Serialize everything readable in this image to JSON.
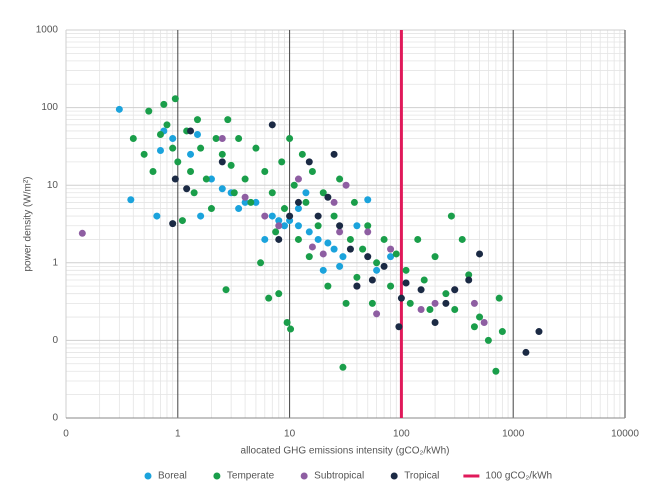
{
  "chart_data": {
    "type": "scatter",
    "x_label": "allocated GHG emissions intensity (gCO₂/kWh)",
    "y_label": "power density (W/m²)",
    "xscale": "log",
    "yscale": "log",
    "grid": true,
    "legend": "bottom",
    "xlim": [
      0.1,
      10000
    ],
    "xticks": [
      {
        "value": 0.1,
        "label": "0"
      },
      1,
      10,
      100,
      1000,
      10000
    ],
    "ylim": [
      0.01,
      1000
    ],
    "yticks": [
      {
        "value": 0.01,
        "label": "0"
      },
      {
        "value": 0.1,
        "label": "0"
      },
      1,
      10,
      100,
      1000
    ],
    "series": [
      {
        "name": "Boreal",
        "color": "#1ba3dc",
        "x": [
          0.3,
          0.38,
          0.65,
          0.7,
          0.75,
          0.9,
          1.3,
          1.5,
          1.6,
          2,
          2.5,
          3,
          3.5,
          4,
          5,
          6,
          7,
          8,
          9,
          10,
          12,
          15,
          18,
          22,
          25,
          30,
          40,
          50,
          60,
          80,
          28,
          20,
          12,
          14
        ],
        "values": [
          95,
          6.5,
          4,
          28,
          50,
          40,
          25,
          45,
          4,
          12,
          9,
          8,
          5,
          6,
          6,
          2,
          4,
          3.5,
          3,
          3.5,
          3,
          2.5,
          2,
          1.8,
          1.5,
          1.2,
          3,
          6.5,
          0.8,
          1.2,
          0.9,
          0.8,
          5,
          8
        ]
      },
      {
        "name": "Temperate",
        "color": "#1a9e4a",
        "x": [
          0.4,
          0.5,
          0.55,
          0.6,
          0.7,
          0.75,
          0.8,
          0.9,
          0.95,
          1.0,
          1.1,
          1.2,
          1.3,
          1.4,
          1.5,
          1.6,
          1.8,
          2,
          2.2,
          2.5,
          2.7,
          2.8,
          3,
          3.2,
          3.5,
          4,
          4.5,
          5,
          5.5,
          6,
          6.5,
          7,
          7.5,
          8,
          8.5,
          9,
          9.5,
          10,
          10.2,
          11,
          12,
          13,
          14,
          15,
          16,
          18,
          20,
          22,
          25,
          28,
          30,
          32,
          35,
          38,
          40,
          45,
          50,
          55,
          60,
          70,
          80,
          90,
          110,
          120,
          140,
          160,
          180,
          200,
          250,
          280,
          300,
          350,
          400,
          450,
          500,
          600,
          700,
          750,
          800
        ],
        "values": [
          40,
          25,
          90,
          15,
          45,
          110,
          60,
          30,
          130,
          20,
          3.5,
          50,
          15,
          8,
          70,
          30,
          12,
          5,
          40,
          25,
          0.45,
          70,
          18,
          8,
          40,
          12,
          6,
          30,
          1,
          15,
          0.35,
          8,
          2.5,
          0.4,
          20,
          5,
          0.17,
          40,
          0.14,
          10,
          2,
          25,
          6,
          1.2,
          15,
          3,
          8,
          0.5,
          4,
          12,
          0.045,
          0.3,
          2,
          6,
          0.65,
          1.5,
          3,
          0.3,
          1,
          2,
          0.5,
          1.3,
          0.8,
          0.3,
          2,
          0.6,
          0.25,
          1.2,
          0.4,
          4,
          0.25,
          2,
          0.7,
          0.15,
          0.2,
          0.1,
          0.04,
          0.35,
          0.13
        ]
      },
      {
        "name": "Subtropical",
        "color": "#8e5ea2",
        "x": [
          0.14,
          2.5,
          4,
          6,
          8,
          12,
          16,
          20,
          25,
          28,
          32,
          40,
          50,
          60,
          80,
          110,
          150,
          200,
          300,
          450,
          550
        ],
        "values": [
          2.4,
          40,
          7,
          4,
          3,
          12,
          1.6,
          1.3,
          6,
          2.5,
          10,
          0.5,
          2.5,
          0.22,
          1.5,
          0.55,
          0.25,
          0.3,
          0.45,
          0.3,
          0.17
        ]
      },
      {
        "name": "Tropical",
        "color": "#1b2a44",
        "x": [
          0.9,
          0.95,
          1.2,
          1.3,
          2.5,
          7,
          8,
          10,
          12,
          15,
          18,
          22,
          25,
          28,
          35,
          40,
          50,
          55,
          70,
          100,
          110,
          150,
          200,
          250,
          300,
          400,
          500,
          1300,
          1700,
          95
        ],
        "values": [
          3.2,
          12,
          9,
          50,
          20,
          60,
          2,
          4,
          6,
          20,
          4,
          7,
          25,
          3,
          1.5,
          0.5,
          1.2,
          0.6,
          0.9,
          0.35,
          0.55,
          0.45,
          0.17,
          0.3,
          0.45,
          0.6,
          1.3,
          0.07,
          0.13,
          0.15
        ]
      }
    ],
    "reference_line": {
      "name": "100 gCO₂/kWh",
      "x": 100,
      "color": "#e0195a"
    }
  }
}
